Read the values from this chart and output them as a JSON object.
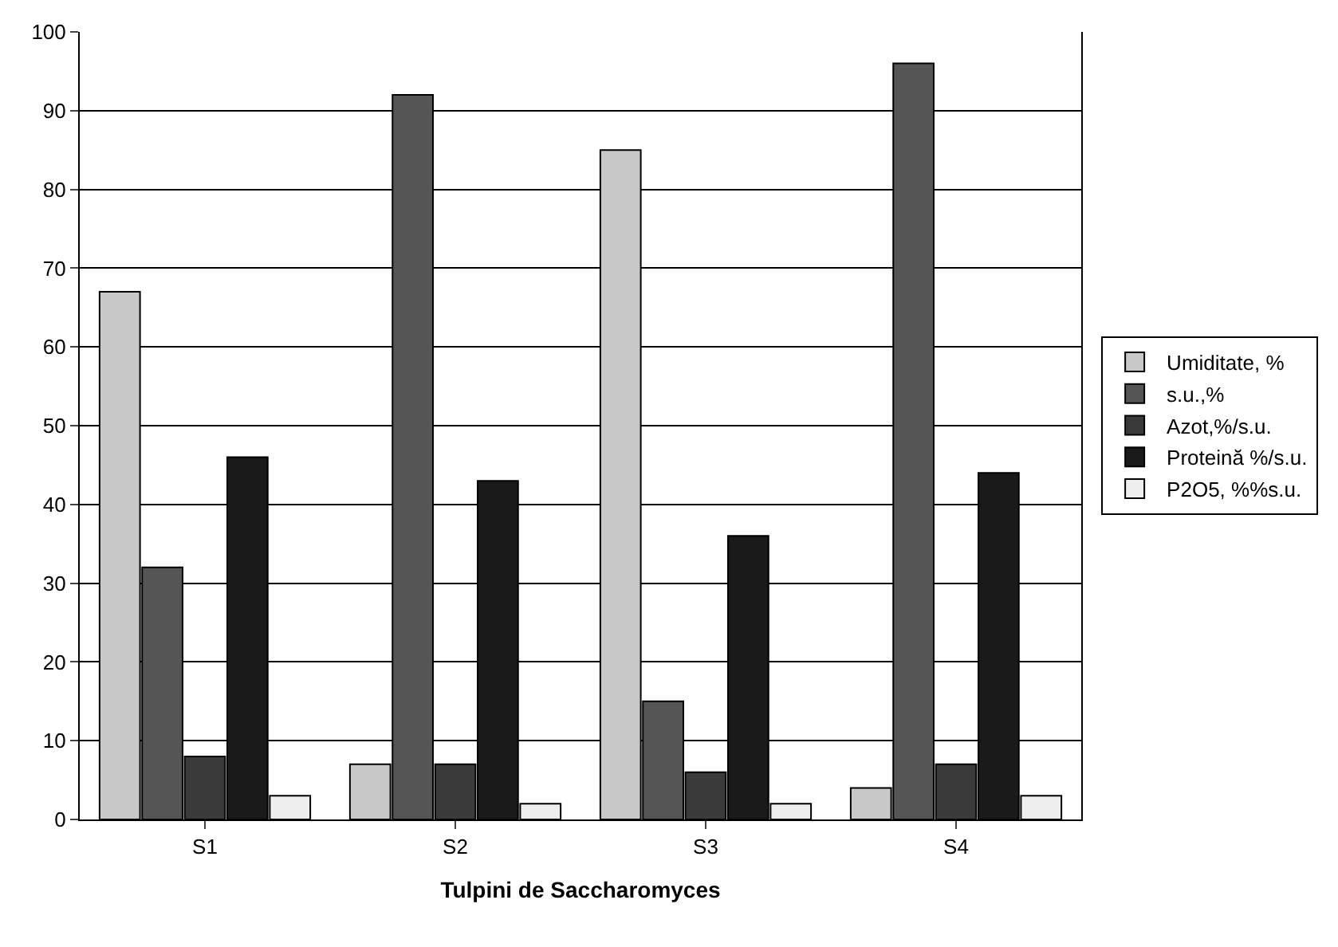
{
  "chart_data": {
    "type": "bar",
    "xlabel": "Tulpini de Saccharomyces",
    "categories": [
      "S1",
      "S2",
      "S3",
      "S4"
    ],
    "series": [
      {
        "name": "Umiditate, %",
        "color": "#c8c8c8",
        "values": [
          67,
          7,
          85,
          4
        ]
      },
      {
        "name": "s.u.,%",
        "color": "#555555",
        "values": [
          32,
          92,
          15,
          96
        ]
      },
      {
        "name": "Azot,%/s.u.",
        "color": "#3a3a3a",
        "values": [
          8,
          7,
          6,
          7
        ]
      },
      {
        "name": "Proteină %/s.u.",
        "color": "#1a1a1a",
        "values": [
          46,
          43,
          36,
          44
        ]
      },
      {
        "name": "P2O5, %%s.u.",
        "color": "#eeeeee",
        "values": [
          3,
          2,
          2,
          3
        ]
      }
    ],
    "ylim": [
      0,
      100
    ],
    "yticks": [
      0,
      10,
      20,
      30,
      40,
      50,
      60,
      70,
      80,
      90,
      100
    ],
    "grid": "y",
    "legend": "right"
  }
}
